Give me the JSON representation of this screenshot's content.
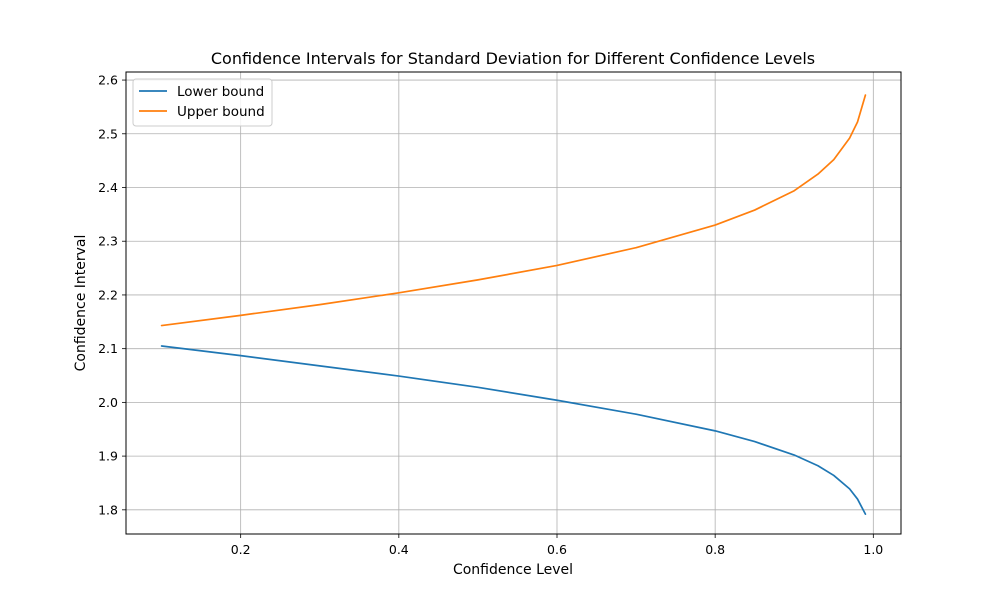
{
  "chart_data": {
    "type": "line",
    "title": "Confidence Intervals for Standard Deviation for Different Confidence Levels",
    "xlabel": "Confidence Level",
    "ylabel": "Confidence Interval",
    "xlim": [
      0.055,
      1.035
    ],
    "ylim": [
      1.755,
      2.615
    ],
    "xticks": [
      0.2,
      0.4,
      0.6,
      0.8,
      1.0
    ],
    "xtick_labels": [
      "0.2",
      "0.4",
      "0.6",
      "0.8",
      "1.0"
    ],
    "yticks": [
      1.8,
      1.9,
      2.0,
      2.1,
      2.2,
      2.3,
      2.4,
      2.5,
      2.6
    ],
    "ytick_labels": [
      "1.8",
      "1.9",
      "2.0",
      "2.1",
      "2.2",
      "2.3",
      "2.4",
      "2.5",
      "2.6"
    ],
    "grid": true,
    "legend_position": "upper-left",
    "x": [
      0.1,
      0.2,
      0.3,
      0.4,
      0.5,
      0.6,
      0.7,
      0.8,
      0.85,
      0.9,
      0.93,
      0.95,
      0.97,
      0.98,
      0.99
    ],
    "series": [
      {
        "name": "Lower bound",
        "color": "#1f77b4",
        "values": [
          2.105,
          2.087,
          2.068,
          2.049,
          2.028,
          2.004,
          1.978,
          1.947,
          1.927,
          1.902,
          1.882,
          1.864,
          1.839,
          1.82,
          1.792
        ]
      },
      {
        "name": "Upper bound",
        "color": "#ff7f0e",
        "values": [
          2.143,
          2.162,
          2.182,
          2.204,
          2.228,
          2.255,
          2.288,
          2.33,
          2.358,
          2.394,
          2.425,
          2.452,
          2.492,
          2.522,
          2.572
        ]
      }
    ]
  }
}
